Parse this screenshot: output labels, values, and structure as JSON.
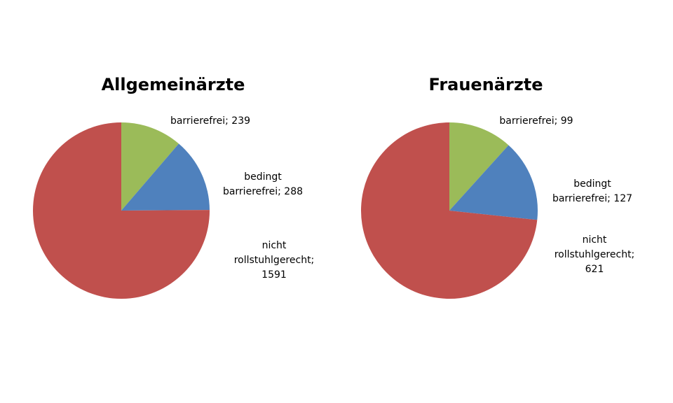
{
  "chart_data": [
    {
      "type": "pie",
      "title": "Allgemeinärzte",
      "values": [
        239,
        288,
        1591
      ],
      "value_labels": [
        "barrierefrei; 239",
        "bedingt barrierefrei; 288",
        "nicht rollstuhlgerecht; 1591"
      ],
      "colors": [
        "#9bbb59",
        "#4f81bd",
        "#c0504d"
      ]
    },
    {
      "type": "pie",
      "title": "Frauenärzte",
      "values": [
        99,
        127,
        621
      ],
      "value_labels": [
        "barrierefrei; 99",
        "bedingt barrierefrei; 127",
        "nicht rollstuhlgerecht; 621"
      ],
      "colors": [
        "#9bbb59",
        "#4f81bd",
        "#c0504d"
      ]
    }
  ]
}
